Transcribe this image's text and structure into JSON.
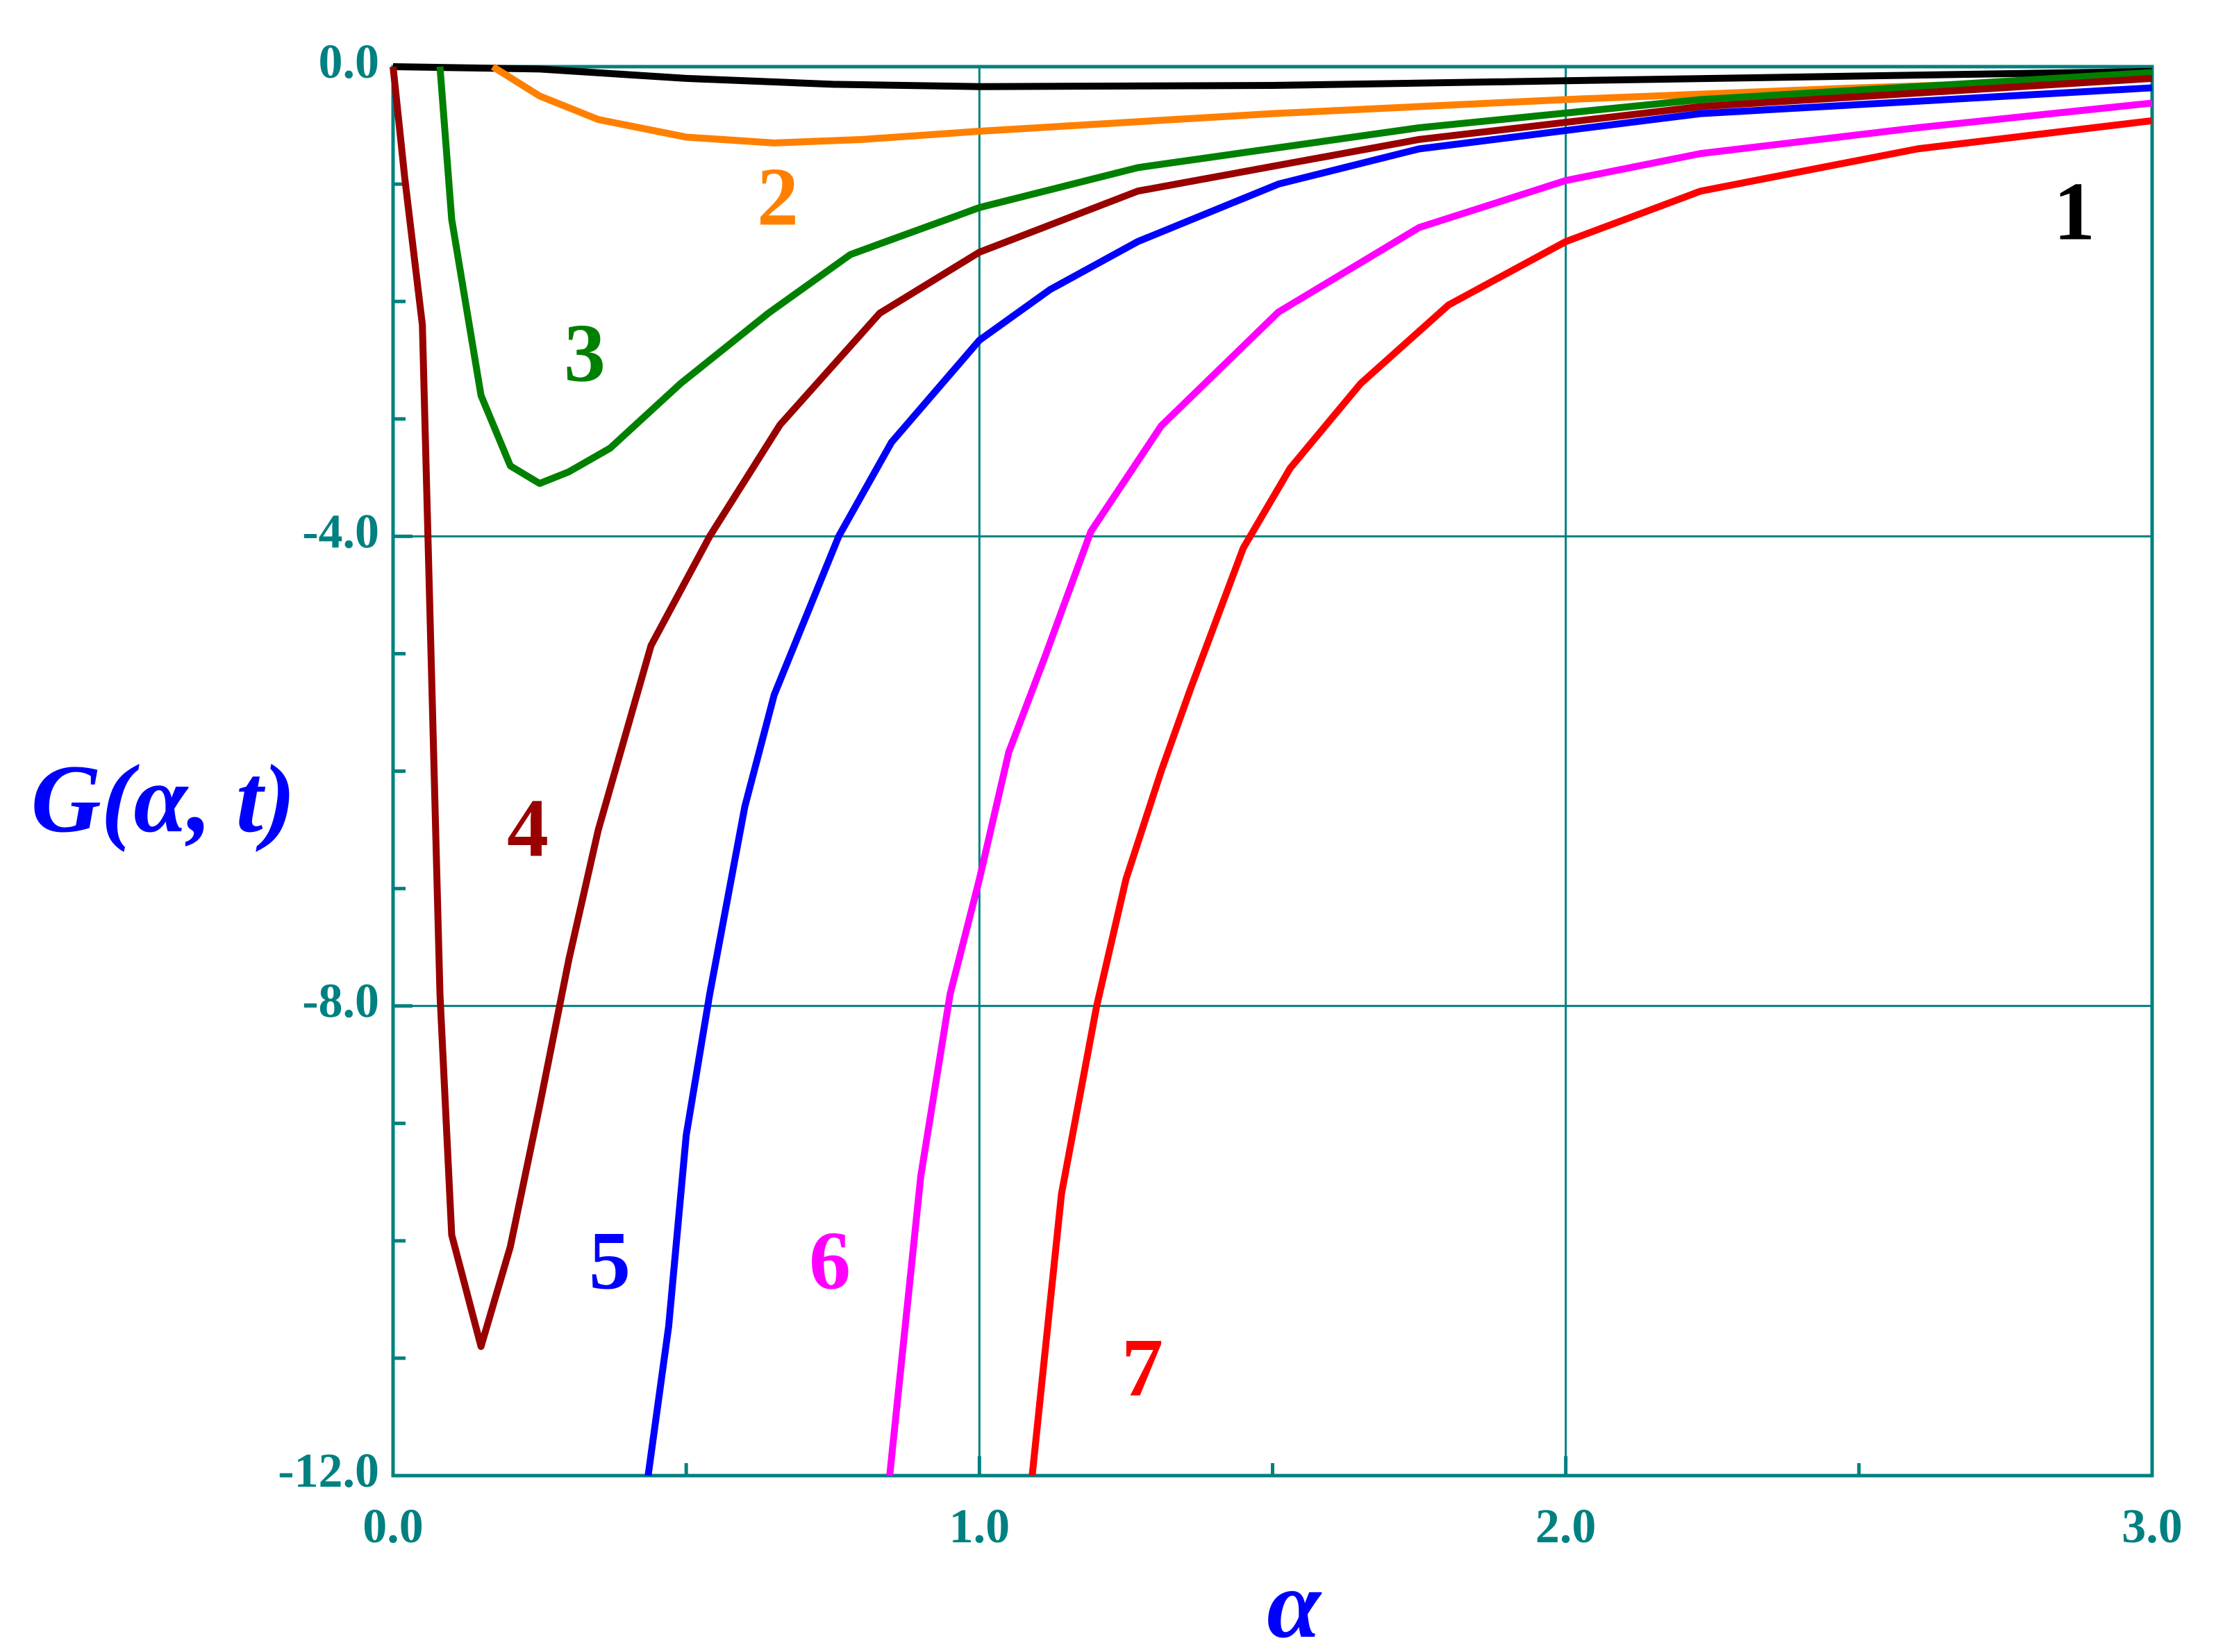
{
  "chart_data": {
    "type": "line",
    "x_label": "α",
    "y_label": "G(α, t)",
    "xlim": [
      0,
      3
    ],
    "ylim": [
      -12,
      0
    ],
    "xticks": [
      {
        "value": 0,
        "label": "0.0"
      },
      {
        "value": 1,
        "label": "1.0"
      },
      {
        "value": 2,
        "label": "2.0"
      },
      {
        "value": 3,
        "label": "3.0"
      }
    ],
    "yticks": [
      {
        "value": -12,
        "label": "-12.0"
      },
      {
        "value": -8,
        "label": "-8.0"
      },
      {
        "value": -4,
        "label": "-4.0"
      },
      {
        "value": 0,
        "label": "0.0"
      }
    ],
    "x_minor_ticks": [
      0.5,
      1.5,
      2.5
    ],
    "y_minor_ticks": [
      -11,
      -10,
      -9,
      -7,
      -6,
      -5,
      -3,
      -2,
      -1
    ],
    "grid": true,
    "axis_color": "#008080",
    "series": [
      {
        "name": "1",
        "color": "#000000",
        "x": [
          0,
          0.25,
          0.5,
          0.75,
          1.0,
          1.5,
          2.0,
          2.5,
          3.0
        ],
        "values": [
          0,
          -0.02,
          -0.1,
          -0.15,
          -0.17,
          -0.16,
          -0.12,
          -0.08,
          -0.04
        ]
      },
      {
        "name": "2",
        "color": "#ff8000",
        "x": [
          0.17,
          0.25,
          0.35,
          0.5,
          0.65,
          0.8,
          1.0,
          1.5,
          2.0,
          2.5,
          3.0
        ],
        "values": [
          0,
          -0.25,
          -0.45,
          -0.6,
          -0.65,
          -0.62,
          -0.55,
          -0.4,
          -0.28,
          -0.18,
          -0.1
        ]
      },
      {
        "name": "3",
        "color": "#008000",
        "x": [
          0.08,
          0.1,
          0.15,
          0.2,
          0.25,
          0.3,
          0.37,
          0.49,
          0.64,
          0.78,
          1.0,
          1.27,
          1.75,
          2.23,
          3.0
        ],
        "values": [
          0,
          -1.3,
          -2.8,
          -3.4,
          -3.55,
          -3.45,
          -3.25,
          -2.7,
          -2.1,
          -1.6,
          -1.2,
          -0.86,
          -0.52,
          -0.28,
          -0.05
        ]
      },
      {
        "name": "4",
        "color": "#990000",
        "x": [
          0,
          0.02,
          0.05,
          0.08,
          0.1,
          0.15,
          0.2,
          0.25,
          0.3,
          0.35,
          0.44,
          0.54,
          0.66,
          0.83,
          1.0,
          1.27,
          1.75,
          2.23,
          3.0
        ],
        "values": [
          0,
          -0.95,
          -2.2,
          -7.9,
          -9.95,
          -10.9,
          -10.05,
          -8.85,
          -7.6,
          -6.5,
          -4.93,
          -4.0,
          -3.05,
          -2.1,
          -1.58,
          -1.06,
          -0.62,
          -0.34,
          -0.1
        ]
      },
      {
        "name": "5",
        "color": "#0000ff",
        "x": [
          0.435,
          0.47,
          0.5,
          0.54,
          0.6,
          0.65,
          0.76,
          0.85,
          1.0,
          1.12,
          1.27,
          1.51,
          1.75,
          2.23,
          3.0
        ],
        "values": [
          -12,
          -10.73,
          -9.1,
          -7.9,
          -6.3,
          -5.35,
          -4.0,
          -3.2,
          -2.33,
          -1.9,
          -1.49,
          -1.0,
          -0.7,
          -0.4,
          -0.18
        ]
      },
      {
        "name": "6",
        "color": "#ff00ff",
        "x": [
          0.847,
          0.9,
          0.95,
          1.0,
          1.05,
          1.11,
          1.19,
          1.31,
          1.51,
          1.75,
          2.0,
          2.23,
          2.6,
          3.0
        ],
        "values": [
          -12,
          -9.45,
          -7.9,
          -6.92,
          -5.84,
          -5.05,
          -3.96,
          -3.06,
          -2.09,
          -1.37,
          -0.97,
          -0.74,
          -0.52,
          -0.31
        ]
      },
      {
        "name": "7",
        "color": "#ff0000",
        "x": [
          1.09,
          1.14,
          1.2,
          1.25,
          1.31,
          1.36,
          1.45,
          1.53,
          1.65,
          1.8,
          2.0,
          2.23,
          2.6,
          3.0
        ],
        "values": [
          -12,
          -9.6,
          -8.0,
          -6.92,
          -6.0,
          -5.3,
          -4.1,
          -3.42,
          -2.7,
          -2.03,
          -1.49,
          -1.06,
          -0.7,
          -0.46
        ]
      }
    ]
  }
}
